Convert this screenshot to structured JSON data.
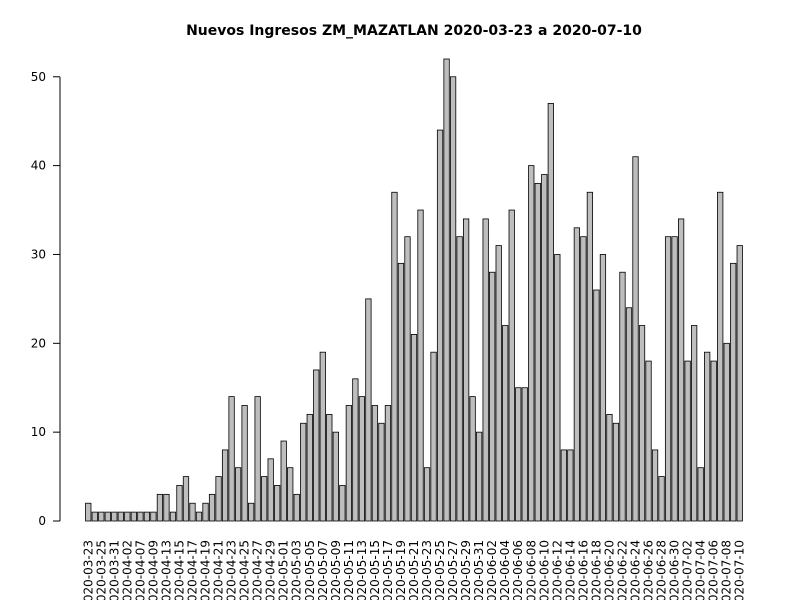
{
  "chart_data": {
    "type": "bar",
    "title": "Nuevos Ingresos ZM_MAZATLAN 2020-03-23 a 2020-07-10",
    "categories": [
      "2020-03-23",
      null,
      "2020-03-25",
      null,
      "2020-03-31",
      null,
      "2020-04-02",
      null,
      "2020-04-07",
      null,
      "2020-04-09",
      null,
      "2020-04-13",
      null,
      "2020-04-15",
      null,
      "2020-04-17",
      null,
      "2020-04-19",
      null,
      "2020-04-21",
      null,
      "2020-04-23",
      null,
      "2020-04-25",
      null,
      "2020-04-27",
      null,
      "2020-04-29",
      null,
      "2020-05-01",
      null,
      "2020-05-03",
      null,
      "2020-05-05",
      null,
      "2020-05-07",
      null,
      "2020-05-09",
      null,
      "2020-05-11",
      null,
      "2020-05-13",
      null,
      "2020-05-15",
      null,
      "2020-05-17",
      null,
      "2020-05-19",
      null,
      "2020-05-21",
      null,
      "2020-05-23",
      null,
      "2020-05-25",
      null,
      "2020-05-27",
      null,
      "2020-05-29",
      null,
      "2020-05-31",
      null,
      "2020-06-02",
      null,
      "2020-06-04",
      null,
      "2020-06-06",
      null,
      "2020-06-08",
      null,
      "2020-06-10",
      null,
      "2020-06-12",
      null,
      "2020-06-14",
      null,
      "2020-06-16",
      null,
      "2020-06-18",
      null,
      "2020-06-20",
      null,
      "2020-06-22",
      null,
      "2020-06-24",
      null,
      "2020-06-26",
      null,
      "2020-06-28",
      null,
      "2020-06-30",
      null,
      "2020-07-02",
      null,
      "2020-07-04",
      null,
      "2020-07-06",
      null,
      "2020-07-08",
      null,
      "2020-07-10"
    ],
    "values": [
      2,
      1,
      1,
      1,
      1,
      1,
      1,
      1,
      1,
      1,
      1,
      3,
      3,
      1,
      4,
      5,
      2,
      1,
      2,
      3,
      5,
      8,
      14,
      6,
      13,
      2,
      14,
      5,
      7,
      4,
      9,
      6,
      3,
      11,
      12,
      17,
      19,
      12,
      10,
      4,
      13,
      16,
      14,
      25,
      13,
      11,
      13,
      37,
      29,
      32,
      21,
      35,
      6,
      19,
      44,
      52,
      50,
      32,
      34,
      14,
      10,
      34,
      28,
      31,
      22,
      35,
      15,
      15,
      40,
      38,
      39,
      47,
      30,
      8,
      8,
      33,
      32,
      37,
      26,
      30,
      12,
      11,
      28,
      24,
      41,
      22,
      18,
      8,
      5,
      32,
      32,
      34,
      18,
      22,
      6,
      19,
      18,
      37,
      20,
      29,
      31
    ],
    "color": "#bebebe",
    "ylim": [
      0,
      52
    ],
    "yticks": [
      0,
      10,
      20,
      30,
      40,
      50
    ],
    "grid": false
  }
}
